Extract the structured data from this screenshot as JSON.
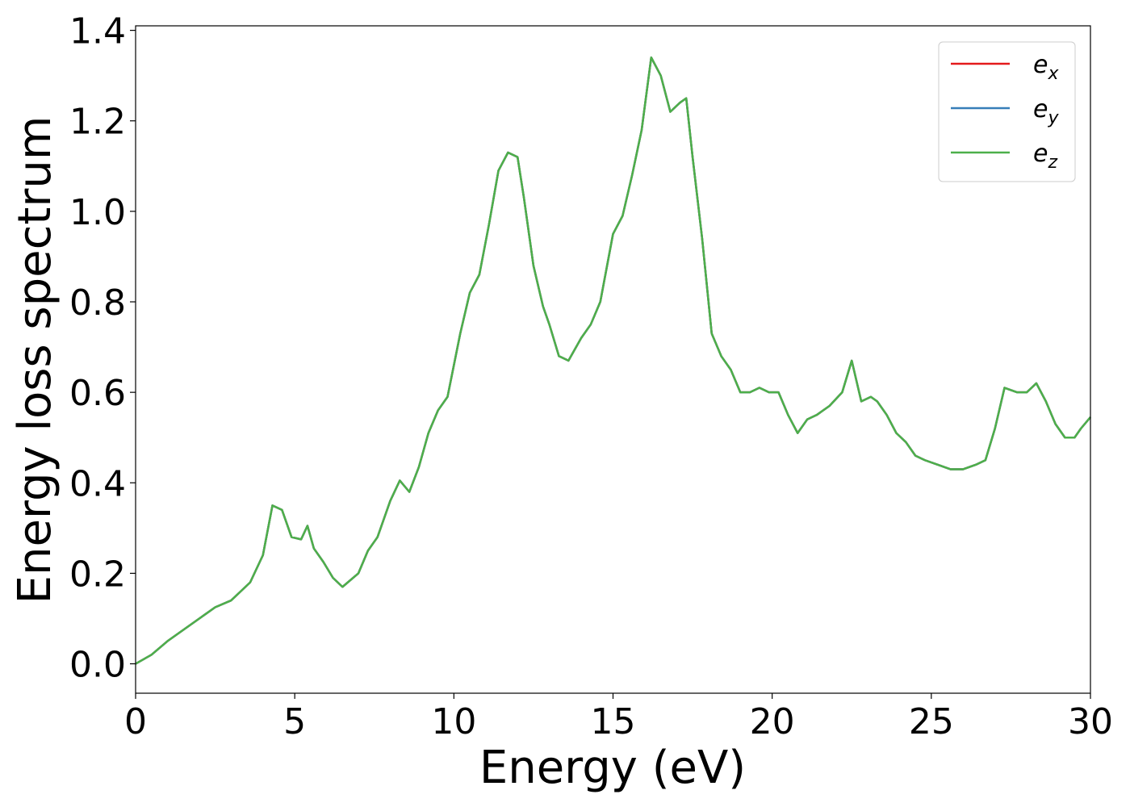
{
  "chart_data": {
    "type": "line",
    "xlabel": "Energy (eV)",
    "ylabel": "Energy loss spectrum",
    "xlim": [
      0,
      30
    ],
    "ylim": [
      -0.065,
      1.41
    ],
    "xticks": [
      "0",
      "5",
      "10",
      "15",
      "20",
      "25",
      "30"
    ],
    "yticks": [
      "0.0",
      "0.2",
      "0.4",
      "0.6",
      "0.8",
      "1.0",
      "1.2",
      "1.4"
    ],
    "grid": false,
    "legend_position": "top-right",
    "x": [
      0,
      0.5,
      1,
      1.5,
      2,
      2.5,
      3,
      3.3,
      3.6,
      4,
      4.3,
      4.6,
      4.9,
      5.2,
      5.4,
      5.6,
      5.9,
      6.2,
      6.5,
      7,
      7.3,
      7.6,
      8,
      8.3,
      8.6,
      8.9,
      9.2,
      9.5,
      9.8,
      10.2,
      10.5,
      10.8,
      11.1,
      11.4,
      11.7,
      12,
      12.2,
      12.5,
      12.8,
      13,
      13.3,
      13.6,
      14,
      14.3,
      14.6,
      15,
      15.3,
      15.6,
      15.9,
      16.2,
      16.5,
      16.8,
      17.1,
      17.3,
      17.5,
      17.8,
      18.1,
      18.4,
      18.7,
      19,
      19.3,
      19.6,
      19.9,
      20.2,
      20.5,
      20.8,
      21.1,
      21.4,
      21.8,
      22.2,
      22.5,
      22.8,
      23.1,
      23.3,
      23.6,
      23.9,
      24.2,
      24.5,
      24.8,
      25.2,
      25.6,
      26,
      26.4,
      26.7,
      27,
      27.3,
      27.7,
      28,
      28.3,
      28.6,
      28.9,
      29.2,
      29.5,
      29.7,
      30
    ],
    "series": [
      {
        "name": "e_x",
        "color": "#e41a1c",
        "values": [
          0,
          0.02,
          0.05,
          0.075,
          0.1,
          0.125,
          0.14,
          0.16,
          0.18,
          0.24,
          0.35,
          0.34,
          0.28,
          0.275,
          0.305,
          0.255,
          0.225,
          0.19,
          0.17,
          0.2,
          0.25,
          0.28,
          0.36,
          0.405,
          0.38,
          0.435,
          0.51,
          0.56,
          0.59,
          0.73,
          0.82,
          0.86,
          0.97,
          1.09,
          1.13,
          1.12,
          1.03,
          0.88,
          0.79,
          0.75,
          0.68,
          0.67,
          0.72,
          0.75,
          0.8,
          0.95,
          0.99,
          1.08,
          1.18,
          1.34,
          1.3,
          1.22,
          1.24,
          1.25,
          1.12,
          0.94,
          0.73,
          0.68,
          0.65,
          0.6,
          0.6,
          0.61,
          0.6,
          0.6,
          0.55,
          0.51,
          0.54,
          0.55,
          0.57,
          0.6,
          0.67,
          0.58,
          0.59,
          0.58,
          0.55,
          0.51,
          0.49,
          0.46,
          0.45,
          0.44,
          0.43,
          0.43,
          0.44,
          0.45,
          0.52,
          0.61,
          0.6,
          0.6,
          0.62,
          0.58,
          0.53,
          0.5,
          0.5,
          0.52,
          0.545
        ]
      },
      {
        "name": "e_y",
        "color": "#377eb8",
        "values": [
          0,
          0.02,
          0.05,
          0.075,
          0.1,
          0.125,
          0.14,
          0.16,
          0.18,
          0.24,
          0.35,
          0.34,
          0.28,
          0.275,
          0.305,
          0.255,
          0.225,
          0.19,
          0.17,
          0.2,
          0.25,
          0.28,
          0.36,
          0.405,
          0.38,
          0.435,
          0.51,
          0.56,
          0.59,
          0.73,
          0.82,
          0.86,
          0.97,
          1.09,
          1.13,
          1.12,
          1.03,
          0.88,
          0.79,
          0.75,
          0.68,
          0.67,
          0.72,
          0.75,
          0.8,
          0.95,
          0.99,
          1.08,
          1.18,
          1.34,
          1.3,
          1.22,
          1.24,
          1.25,
          1.12,
          0.94,
          0.73,
          0.68,
          0.65,
          0.6,
          0.6,
          0.61,
          0.6,
          0.6,
          0.55,
          0.51,
          0.54,
          0.55,
          0.57,
          0.6,
          0.67,
          0.58,
          0.59,
          0.58,
          0.55,
          0.51,
          0.49,
          0.46,
          0.45,
          0.44,
          0.43,
          0.43,
          0.44,
          0.45,
          0.52,
          0.61,
          0.6,
          0.6,
          0.62,
          0.58,
          0.53,
          0.5,
          0.5,
          0.52,
          0.545
        ]
      },
      {
        "name": "e_z",
        "color": "#4daf4a",
        "values": [
          0,
          0.02,
          0.05,
          0.075,
          0.1,
          0.125,
          0.14,
          0.16,
          0.18,
          0.24,
          0.35,
          0.34,
          0.28,
          0.275,
          0.305,
          0.255,
          0.225,
          0.19,
          0.17,
          0.2,
          0.25,
          0.28,
          0.36,
          0.405,
          0.38,
          0.435,
          0.51,
          0.56,
          0.59,
          0.73,
          0.82,
          0.86,
          0.97,
          1.09,
          1.13,
          1.12,
          1.03,
          0.88,
          0.79,
          0.75,
          0.68,
          0.67,
          0.72,
          0.75,
          0.8,
          0.95,
          0.99,
          1.08,
          1.18,
          1.34,
          1.3,
          1.22,
          1.24,
          1.25,
          1.12,
          0.94,
          0.73,
          0.68,
          0.65,
          0.6,
          0.6,
          0.61,
          0.6,
          0.6,
          0.55,
          0.51,
          0.54,
          0.55,
          0.57,
          0.6,
          0.67,
          0.58,
          0.59,
          0.58,
          0.55,
          0.51,
          0.49,
          0.46,
          0.45,
          0.44,
          0.43,
          0.43,
          0.44,
          0.45,
          0.52,
          0.61,
          0.6,
          0.6,
          0.62,
          0.58,
          0.53,
          0.5,
          0.5,
          0.52,
          0.545
        ]
      }
    ],
    "legend": [
      {
        "base": "e",
        "sub": "x"
      },
      {
        "base": "e",
        "sub": "y"
      },
      {
        "base": "e",
        "sub": "z"
      }
    ]
  }
}
